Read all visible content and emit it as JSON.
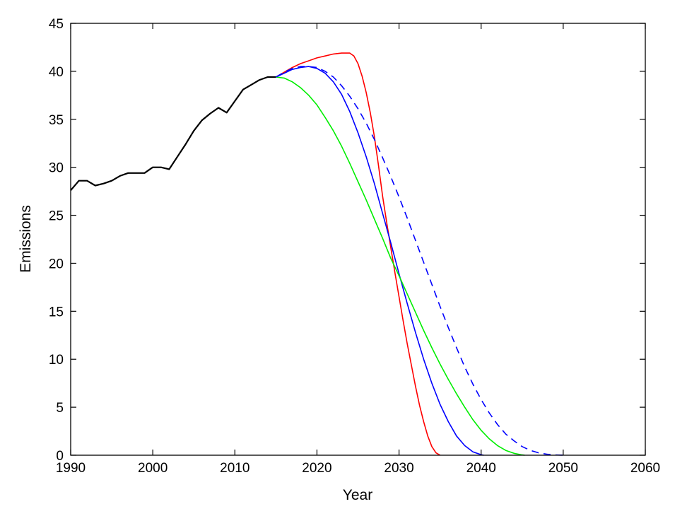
{
  "chart_data": {
    "type": "line",
    "title": "",
    "xlabel": "Year",
    "ylabel": "Emissions",
    "xlim": [
      1990,
      2060
    ],
    "ylim": [
      0,
      45
    ],
    "xticks": [
      1990,
      2000,
      2010,
      2020,
      2030,
      2040,
      2050,
      2060
    ],
    "yticks": [
      0,
      5,
      10,
      15,
      20,
      25,
      30,
      35,
      40,
      45
    ],
    "grid": false,
    "legend": "none",
    "series": [
      {
        "color": "#000000",
        "style": "solid",
        "points": [
          [
            1990,
            27.6
          ],
          [
            1991,
            28.6
          ],
          [
            1992,
            28.6
          ],
          [
            1993,
            28.1
          ],
          [
            1994,
            28.3
          ],
          [
            1995,
            28.6
          ],
          [
            1996,
            29.1
          ],
          [
            1997,
            29.4
          ],
          [
            1998,
            29.4
          ],
          [
            1999,
            29.4
          ],
          [
            2000,
            30.0
          ],
          [
            2001,
            30.0
          ],
          [
            2002,
            29.8
          ],
          [
            2003,
            31.1
          ],
          [
            2004,
            32.4
          ],
          [
            2005,
            33.8
          ],
          [
            2006,
            34.9
          ],
          [
            2007,
            35.6
          ],
          [
            2008,
            36.2
          ],
          [
            2009,
            35.7
          ],
          [
            2010,
            36.9
          ],
          [
            2011,
            38.1
          ],
          [
            2012,
            38.6
          ],
          [
            2013,
            39.1
          ],
          [
            2014,
            39.4
          ],
          [
            2015,
            39.4
          ]
        ]
      },
      {
        "color": "#ff0000",
        "style": "solid",
        "points": [
          [
            2015,
            39.4
          ],
          [
            2016,
            39.9
          ],
          [
            2017,
            40.4
          ],
          [
            2018,
            40.8
          ],
          [
            2019,
            41.1
          ],
          [
            2020,
            41.4
          ],
          [
            2021,
            41.6
          ],
          [
            2022,
            41.8
          ],
          [
            2023,
            41.9
          ],
          [
            2024,
            41.9
          ],
          [
            2024.5,
            41.6
          ],
          [
            2025,
            40.8
          ],
          [
            2025.5,
            39.5
          ],
          [
            2026,
            37.8
          ],
          [
            2026.5,
            35.7
          ],
          [
            2027,
            33.2
          ],
          [
            2027.5,
            30.2
          ],
          [
            2028,
            27.0
          ],
          [
            2028.5,
            24.2
          ],
          [
            2029,
            21.6
          ],
          [
            2029.5,
            19.0
          ],
          [
            2030,
            16.5
          ],
          [
            2030.5,
            14.0
          ],
          [
            2031,
            11.6
          ],
          [
            2031.5,
            9.4
          ],
          [
            2032,
            7.2
          ],
          [
            2032.5,
            5.2
          ],
          [
            2033,
            3.5
          ],
          [
            2033.5,
            2.0
          ],
          [
            2034,
            0.9
          ],
          [
            2034.5,
            0.25
          ],
          [
            2035,
            0
          ]
        ]
      },
      {
        "color": "#0000ff",
        "style": "solid",
        "points": [
          [
            2015,
            39.4
          ],
          [
            2016,
            39.8
          ],
          [
            2017,
            40.2
          ],
          [
            2018,
            40.4
          ],
          [
            2019,
            40.5
          ],
          [
            2020,
            40.3
          ],
          [
            2021,
            39.8
          ],
          [
            2022,
            38.9
          ],
          [
            2023,
            37.6
          ],
          [
            2024,
            35.8
          ],
          [
            2025,
            33.6
          ],
          [
            2026,
            31.1
          ],
          [
            2027,
            28.3
          ],
          [
            2028,
            25.2
          ],
          [
            2029,
            22.1
          ],
          [
            2030,
            18.9
          ],
          [
            2031,
            15.8
          ],
          [
            2032,
            12.8
          ],
          [
            2033,
            10.0
          ],
          [
            2034,
            7.5
          ],
          [
            2035,
            5.3
          ],
          [
            2036,
            3.5
          ],
          [
            2037,
            2.0
          ],
          [
            2038,
            1.0
          ],
          [
            2039,
            0.35
          ],
          [
            2040,
            0.05
          ],
          [
            2040.3,
            0
          ]
        ]
      },
      {
        "color": "#00ee00",
        "style": "solid",
        "points": [
          [
            2015,
            39.4
          ],
          [
            2016,
            39.3
          ],
          [
            2017,
            38.9
          ],
          [
            2018,
            38.3
          ],
          [
            2019,
            37.5
          ],
          [
            2020,
            36.5
          ],
          [
            2021,
            35.2
          ],
          [
            2022,
            33.8
          ],
          [
            2023,
            32.2
          ],
          [
            2024,
            30.4
          ],
          [
            2025,
            28.5
          ],
          [
            2026,
            26.6
          ],
          [
            2027,
            24.6
          ],
          [
            2028,
            22.6
          ],
          [
            2029,
            20.5
          ],
          [
            2030,
            18.7
          ],
          [
            2031,
            16.8
          ],
          [
            2032,
            14.9
          ],
          [
            2033,
            13.0
          ],
          [
            2034,
            11.2
          ],
          [
            2035,
            9.5
          ],
          [
            2036,
            7.9
          ],
          [
            2037,
            6.4
          ],
          [
            2038,
            5.0
          ],
          [
            2039,
            3.7
          ],
          [
            2040,
            2.6
          ],
          [
            2041,
            1.7
          ],
          [
            2042,
            1.0
          ],
          [
            2043,
            0.5
          ],
          [
            2044,
            0.2
          ],
          [
            2045,
            0.03
          ],
          [
            2045.3,
            0
          ]
        ]
      },
      {
        "color": "#0000ff",
        "style": "dashed",
        "points": [
          [
            2015,
            39.4
          ],
          [
            2016,
            39.9
          ],
          [
            2017,
            40.3
          ],
          [
            2018,
            40.5
          ],
          [
            2019,
            40.5
          ],
          [
            2020,
            40.4
          ],
          [
            2021,
            40.0
          ],
          [
            2022,
            39.4
          ],
          [
            2023,
            38.5
          ],
          [
            2024,
            37.4
          ],
          [
            2025,
            36.1
          ],
          [
            2026,
            34.6
          ],
          [
            2027,
            32.9
          ],
          [
            2028,
            31.0
          ],
          [
            2029,
            29.0
          ],
          [
            2030,
            26.9
          ],
          [
            2031,
            24.7
          ],
          [
            2032,
            22.4
          ],
          [
            2033,
            20.1
          ],
          [
            2034,
            17.8
          ],
          [
            2035,
            15.5
          ],
          [
            2036,
            13.3
          ],
          [
            2037,
            11.2
          ],
          [
            2038,
            9.2
          ],
          [
            2039,
            7.4
          ],
          [
            2040,
            5.8
          ],
          [
            2041,
            4.4
          ],
          [
            2042,
            3.2
          ],
          [
            2043,
            2.2
          ],
          [
            2044,
            1.5
          ],
          [
            2045,
            0.9
          ],
          [
            2046,
            0.5
          ],
          [
            2047,
            0.25
          ],
          [
            2048,
            0.1
          ],
          [
            2049,
            0.03
          ],
          [
            2050,
            0
          ]
        ]
      }
    ]
  }
}
